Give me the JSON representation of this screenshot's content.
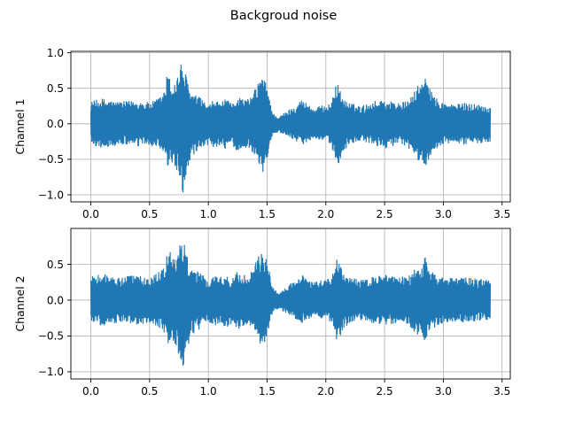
{
  "chart_data": [
    {
      "type": "line",
      "title": "Backgroud noise",
      "xlabel": "",
      "ylabel": "Channel 1",
      "xlim": [
        -0.17,
        3.57
      ],
      "ylim": [
        -1.1,
        1.02
      ],
      "xticks": [
        0.0,
        0.5,
        1.0,
        1.5,
        2.0,
        2.5,
        3.0,
        3.5
      ],
      "xtick_labels": [
        "0.0",
        "0.5",
        "1.0",
        "1.5",
        "2.0",
        "2.5",
        "3.0",
        "3.5"
      ],
      "yticks": [
        -1.0,
        -0.5,
        0.0,
        0.5,
        1.0
      ],
      "ytick_labels": [
        "−1.0",
        "−0.5",
        "0.0",
        "0.5",
        "1.0"
      ],
      "grid": true,
      "color": "#1f77b4",
      "series": [
        {
          "x_range": [
            0.0,
            3.4
          ],
          "envelope_x": [
            0.0,
            0.1,
            0.2,
            0.3,
            0.4,
            0.5,
            0.55,
            0.6,
            0.63,
            0.65,
            0.7,
            0.75,
            0.78,
            0.8,
            0.85,
            0.9,
            0.95,
            1.0,
            1.05,
            1.1,
            1.15,
            1.2,
            1.25,
            1.3,
            1.35,
            1.4,
            1.43,
            1.46,
            1.5,
            1.55,
            1.6,
            1.7,
            1.8,
            1.9,
            2.0,
            2.05,
            2.08,
            2.1,
            2.15,
            2.2,
            2.3,
            2.4,
            2.5,
            2.6,
            2.7,
            2.8,
            2.85,
            2.9,
            2.95,
            3.0,
            3.1,
            3.2,
            3.3,
            3.4
          ],
          "envelope_upper": [
            0.32,
            0.36,
            0.32,
            0.32,
            0.33,
            0.3,
            0.34,
            0.4,
            0.5,
            0.72,
            0.55,
            0.75,
            0.93,
            0.75,
            0.45,
            0.4,
            0.35,
            0.25,
            0.35,
            0.3,
            0.35,
            0.28,
            0.4,
            0.35,
            0.35,
            0.5,
            0.62,
            0.68,
            0.55,
            0.15,
            0.1,
            0.22,
            0.35,
            0.22,
            0.28,
            0.3,
            0.58,
            0.57,
            0.35,
            0.3,
            0.25,
            0.32,
            0.35,
            0.3,
            0.32,
            0.58,
            0.66,
            0.45,
            0.35,
            0.3,
            0.28,
            0.3,
            0.28,
            0.25
          ],
          "envelope_lower": [
            -0.3,
            -0.35,
            -0.32,
            -0.3,
            -0.33,
            -0.3,
            -0.35,
            -0.4,
            -0.55,
            -0.62,
            -0.58,
            -0.75,
            -1.0,
            -0.85,
            -0.5,
            -0.45,
            -0.35,
            -0.3,
            -0.35,
            -0.3,
            -0.4,
            -0.3,
            -0.4,
            -0.35,
            -0.35,
            -0.45,
            -0.58,
            -0.72,
            -0.5,
            -0.15,
            -0.12,
            -0.2,
            -0.3,
            -0.2,
            -0.25,
            -0.3,
            -0.62,
            -0.6,
            -0.38,
            -0.32,
            -0.25,
            -0.3,
            -0.35,
            -0.3,
            -0.35,
            -0.55,
            -0.65,
            -0.4,
            -0.35,
            -0.3,
            -0.28,
            -0.3,
            -0.28,
            -0.25
          ]
        }
      ]
    },
    {
      "type": "line",
      "title": "",
      "xlabel": "",
      "ylabel": "Channel 2",
      "xlim": [
        -0.17,
        3.57
      ],
      "ylim": [
        -1.1,
        1.0
      ],
      "xticks": [
        0.0,
        0.5,
        1.0,
        1.5,
        2.0,
        2.5,
        3.0,
        3.5
      ],
      "xtick_labels": [
        "0.0",
        "0.5",
        "1.0",
        "1.5",
        "2.0",
        "2.5",
        "3.0",
        "3.5"
      ],
      "yticks": [
        -1.0,
        -0.5,
        0.0,
        0.5
      ],
      "ytick_labels": [
        "−1.0",
        "−0.5",
        "0.0",
        "0.5"
      ],
      "grid": true,
      "color": "#1f77b4",
      "series": [
        {
          "x_range": [
            0.0,
            3.4
          ],
          "envelope_x": [
            0.0,
            0.1,
            0.2,
            0.3,
            0.4,
            0.5,
            0.55,
            0.6,
            0.63,
            0.65,
            0.7,
            0.75,
            0.78,
            0.8,
            0.85,
            0.9,
            0.95,
            1.0,
            1.05,
            1.1,
            1.15,
            1.2,
            1.25,
            1.3,
            1.35,
            1.4,
            1.43,
            1.46,
            1.5,
            1.55,
            1.6,
            1.7,
            1.8,
            1.9,
            2.0,
            2.05,
            2.08,
            2.1,
            2.15,
            2.2,
            2.3,
            2.4,
            2.5,
            2.6,
            2.7,
            2.8,
            2.85,
            2.9,
            2.95,
            3.0,
            3.1,
            3.2,
            3.3,
            3.4
          ],
          "envelope_upper": [
            0.35,
            0.38,
            0.33,
            0.34,
            0.34,
            0.32,
            0.36,
            0.42,
            0.52,
            0.75,
            0.6,
            0.75,
            0.9,
            0.78,
            0.48,
            0.42,
            0.36,
            0.28,
            0.36,
            0.32,
            0.38,
            0.3,
            0.42,
            0.36,
            0.38,
            0.52,
            0.62,
            0.67,
            0.55,
            0.18,
            0.12,
            0.24,
            0.38,
            0.25,
            0.3,
            0.32,
            0.58,
            0.57,
            0.38,
            0.32,
            0.28,
            0.34,
            0.36,
            0.32,
            0.34,
            0.5,
            0.62,
            0.42,
            0.36,
            0.32,
            0.3,
            0.32,
            0.3,
            0.28
          ],
          "envelope_lower": [
            -0.32,
            -0.36,
            -0.33,
            -0.32,
            -0.34,
            -0.32,
            -0.36,
            -0.42,
            -0.55,
            -0.62,
            -0.6,
            -0.78,
            -0.98,
            -0.85,
            -0.5,
            -0.46,
            -0.36,
            -0.3,
            -0.36,
            -0.32,
            -0.42,
            -0.32,
            -0.42,
            -0.36,
            -0.36,
            -0.46,
            -0.58,
            -0.7,
            -0.5,
            -0.16,
            -0.13,
            -0.22,
            -0.32,
            -0.22,
            -0.28,
            -0.32,
            -0.6,
            -0.58,
            -0.4,
            -0.34,
            -0.28,
            -0.32,
            -0.36,
            -0.32,
            -0.36,
            -0.52,
            -0.58,
            -0.42,
            -0.36,
            -0.32,
            -0.3,
            -0.32,
            -0.3,
            -0.28
          ]
        }
      ]
    }
  ]
}
